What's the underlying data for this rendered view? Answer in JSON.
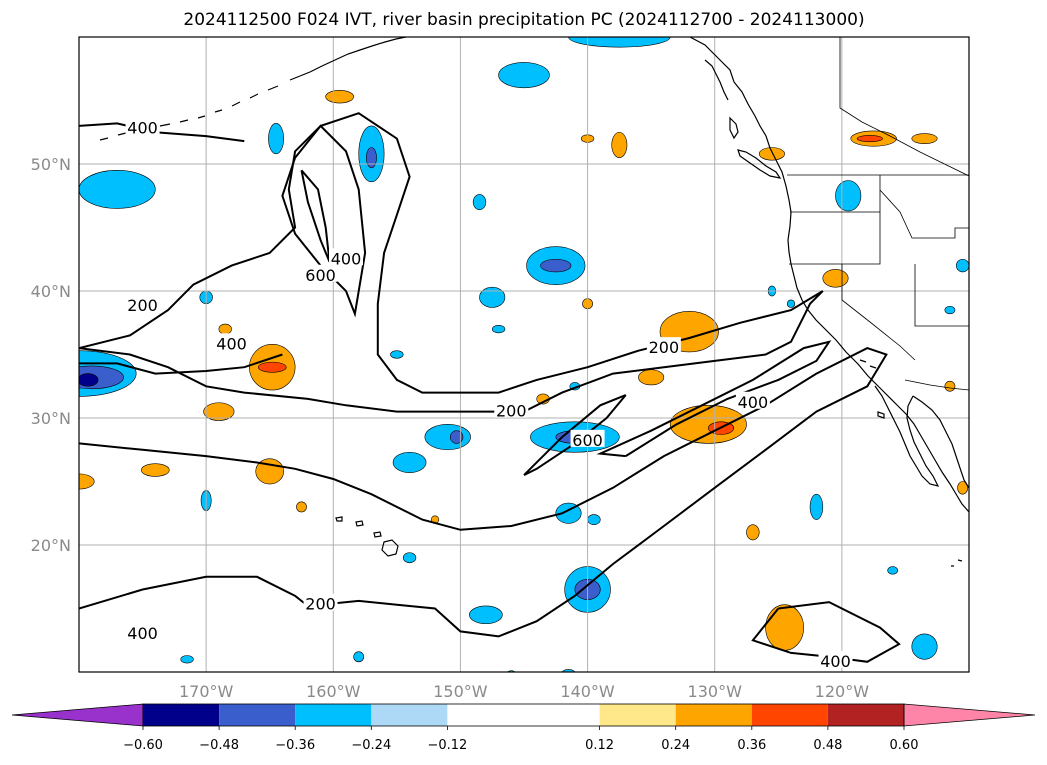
{
  "title": "2024112500 F024 IVT, river basin precipitation PC (2024112700 - 2024113000)",
  "map": {
    "lon_range": [
      -180,
      -110
    ],
    "lat_range": [
      10,
      60
    ],
    "lat_ticks": [
      {
        "value": 50,
        "label": "50°N"
      },
      {
        "value": 40,
        "label": "40°N"
      },
      {
        "value": 30,
        "label": "30°N"
      },
      {
        "value": 20,
        "label": "20°N"
      }
    ],
    "lon_ticks": [
      {
        "value": -170,
        "label": "170°W"
      },
      {
        "value": -160,
        "label": "160°W"
      },
      {
        "value": -150,
        "label": "150°W"
      },
      {
        "value": -140,
        "label": "140°W"
      },
      {
        "value": -130,
        "label": "130°W"
      },
      {
        "value": -120,
        "label": "120°W"
      }
    ],
    "grid": true
  },
  "colorbar": {
    "extend": "both",
    "colors": [
      "#9932cc",
      "#00008b",
      "#3a5fcd",
      "#00bfff",
      "#add8f6",
      "#ffffff",
      "#ffe88a",
      "#ffa500",
      "#ff4500",
      "#b22222",
      "#ff85a8"
    ],
    "ticks": [
      -0.6,
      -0.48,
      -0.36,
      -0.24,
      -0.12,
      0.12,
      0.24,
      0.36,
      0.48,
      0.6
    ],
    "tick_labels": [
      "−0.60",
      "−0.48",
      "−0.36",
      "−0.24",
      "−0.12",
      "0.12",
      "0.24",
      "0.36",
      "0.48",
      "0.60"
    ]
  },
  "ivt_contours": [
    {
      "level": 200,
      "label": "200",
      "points": [
        [
          -180,
          28
        ],
        [
          -175,
          27.5
        ],
        [
          -170,
          27
        ],
        [
          -166,
          26.5
        ],
        [
          -163,
          26
        ],
        [
          -160,
          25.2
        ],
        [
          -157,
          24
        ],
        [
          -153,
          22
        ],
        [
          -150,
          21.2
        ],
        [
          -146,
          21.5
        ],
        [
          -142,
          22.5
        ],
        [
          -138,
          24.5
        ],
        [
          -134,
          27
        ],
        [
          -130,
          29
        ],
        [
          -126,
          31
        ],
        [
          -122,
          33.5
        ],
        [
          -118,
          35.5
        ],
        [
          -116.5,
          35
        ],
        [
          -118,
          32.5
        ],
        [
          -122,
          30.5
        ],
        [
          -126,
          27.5
        ],
        [
          -130,
          24.5
        ],
        [
          -134,
          21.5
        ],
        [
          -138,
          18.5
        ],
        [
          -141,
          16
        ],
        [
          -144,
          14
        ],
        [
          -147,
          12.8
        ],
        [
          -150,
          13.2
        ],
        [
          -152,
          15
        ],
        [
          -155,
          15.3
        ],
        [
          -158,
          15.6
        ],
        [
          -162,
          15.2
        ],
        [
          -163,
          16
        ],
        [
          -166,
          17.5
        ],
        [
          -170,
          17.5
        ],
        [
          -175,
          16.5
        ],
        [
          -180,
          15
        ]
      ]
    },
    {
      "level": 200,
      "label": "200",
      "points": [
        [
          -180,
          35.5
        ],
        [
          -176,
          36.5
        ],
        [
          -173,
          38.5
        ],
        [
          -171,
          40.5
        ],
        [
          -168,
          42
        ],
        [
          -165,
          43
        ],
        [
          -163,
          45
        ],
        [
          -163.5,
          48
        ],
        [
          -163,
          51
        ],
        [
          -161,
          53
        ],
        [
          -158,
          54
        ],
        [
          -155,
          52
        ],
        [
          -154,
          49
        ],
        [
          -155,
          46
        ],
        [
          -156,
          43
        ],
        [
          -156.5,
          39
        ],
        [
          -156.5,
          35
        ],
        [
          -155,
          33
        ],
        [
          -153,
          32
        ],
        [
          -150,
          32
        ],
        [
          -147,
          32
        ],
        [
          -144,
          33
        ],
        [
          -140,
          34
        ],
        [
          -136,
          35.3
        ],
        [
          -132,
          36.3
        ],
        [
          -128,
          37.5
        ],
        [
          -124,
          38.5
        ],
        [
          -121.5,
          40
        ],
        [
          -122.5,
          39
        ],
        [
          -124,
          36
        ],
        [
          -126,
          35
        ],
        [
          -130,
          34.5
        ],
        [
          -134,
          34
        ],
        [
          -138,
          33.5
        ],
        [
          -142,
          32
        ],
        [
          -145,
          30.5
        ],
        [
          -150,
          30.5
        ],
        [
          -155,
          30.5
        ],
        [
          -159,
          31
        ],
        [
          -162,
          31.5
        ],
        [
          -167,
          32
        ],
        [
          -170,
          32.5
        ],
        [
          -173,
          34
        ],
        [
          -176,
          35
        ],
        [
          -180,
          35.5
        ]
      ]
    },
    {
      "level": 400,
      "label": "400",
      "points": [
        [
          -164,
          35
        ],
        [
          -167,
          34
        ],
        [
          -170,
          33.7
        ],
        [
          -174,
          33.5
        ],
        [
          -177,
          34.3
        ],
        [
          -180,
          34.3
        ]
      ]
    },
    {
      "level": 400,
      "label": "400",
      "points": [
        [
          -163,
          50.5
        ],
        [
          -164,
          47.5
        ],
        [
          -163,
          44.5
        ],
        [
          -161,
          42
        ],
        [
          -159,
          40
        ],
        [
          -158.3,
          38.2
        ],
        [
          -157.5,
          43
        ],
        [
          -158,
          48
        ],
        [
          -159,
          51
        ],
        [
          -161,
          53
        ],
        [
          -163,
          50.5
        ]
      ]
    },
    {
      "level": 400,
      "label": "400",
      "points": [
        [
          -180,
          53
        ],
        [
          -177,
          53.2
        ],
        [
          -174,
          52.5
        ],
        [
          -170,
          52.2
        ],
        [
          -167,
          51.8
        ]
      ]
    },
    {
      "level": 400,
      "label": "400",
      "points": [
        [
          -137,
          27
        ],
        [
          -133,
          29.5
        ],
        [
          -129,
          31.5
        ],
        [
          -125,
          33
        ],
        [
          -122,
          34.5
        ],
        [
          -121,
          36
        ],
        [
          -123,
          35.5
        ],
        [
          -127,
          33
        ],
        [
          -131,
          31
        ],
        [
          -135,
          29
        ],
        [
          -139,
          27.2
        ],
        [
          -137,
          27
        ]
      ]
    },
    {
      "level": 400,
      "label": "400",
      "points": [
        [
          -125,
          15
        ],
        [
          -121,
          15.5
        ],
        [
          -117,
          13.5
        ],
        [
          -115.5,
          12.2
        ],
        [
          -118,
          10.8
        ],
        [
          -121,
          11.2
        ],
        [
          -124,
          11.5
        ],
        [
          -127,
          12.5
        ],
        [
          -125,
          15
        ]
      ]
    },
    {
      "level": 600,
      "label": "600",
      "points": [
        [
          -162.5,
          49.5
        ],
        [
          -162,
          47
        ],
        [
          -161,
          44
        ],
        [
          -160.3,
          42.3
        ],
        [
          -160.6,
          45
        ],
        [
          -161.2,
          48
        ],
        [
          -162.5,
          49.5
        ]
      ]
    },
    {
      "level": 600,
      "label": "600",
      "points": [
        [
          -145,
          25.5
        ],
        [
          -142,
          28.5
        ],
        [
          -139,
          31
        ],
        [
          -137,
          31.8
        ],
        [
          -138.5,
          30
        ],
        [
          -141,
          28
        ],
        [
          -144,
          26
        ],
        [
          -145,
          25.5
        ]
      ]
    }
  ],
  "contour_labels": [
    {
      "text": "400",
      "lon": -175,
      "lat": 52.8
    },
    {
      "text": "400",
      "lon": -159,
      "lat": 42.5
    },
    {
      "text": "600",
      "lon": -161,
      "lat": 41.2
    },
    {
      "text": "200",
      "lon": -175,
      "lat": 38.8
    },
    {
      "text": "400",
      "lon": -168,
      "lat": 35.8
    },
    {
      "text": "200",
      "lon": -146,
      "lat": 30.5
    },
    {
      "text": "200",
      "lon": -134,
      "lat": 35.5
    },
    {
      "text": "600",
      "lon": -140,
      "lat": 28.2
    },
    {
      "text": "400",
      "lon": -127,
      "lat": 31.2
    },
    {
      "text": "200",
      "lon": -161,
      "lat": 15.3
    },
    {
      "text": "400",
      "lon": -175,
      "lat": 13
    },
    {
      "text": "400",
      "lon": -120.5,
      "lat": 10.8
    }
  ],
  "pc_patches": [
    {
      "lon": -180,
      "lat": 33.5,
      "rx": 4.5,
      "ry": 1.8,
      "color": "#00bfff"
    },
    {
      "lon": -179,
      "lat": 33.2,
      "rx": 2.5,
      "ry": 0.9,
      "color": "#3a5fcd"
    },
    {
      "lon": -179.3,
      "lat": 33.0,
      "rx": 0.8,
      "ry": 0.5,
      "color": "#00008b"
    },
    {
      "lon": -177,
      "lat": 48,
      "rx": 3,
      "ry": 1.5,
      "color": "#00bfff"
    },
    {
      "lon": -170,
      "lat": 39.5,
      "rx": 0.5,
      "ry": 0.5,
      "color": "#00bfff"
    },
    {
      "lon": -164.8,
      "lat": 34,
      "rx": 1.8,
      "ry": 1.8,
      "color": "#ffa500"
    },
    {
      "lon": -164.8,
      "lat": 34,
      "rx": 1.1,
      "ry": 0.4,
      "color": "#ff4500"
    },
    {
      "lon": -168.5,
      "lat": 37,
      "rx": 0.5,
      "ry": 0.4,
      "color": "#ffa500"
    },
    {
      "lon": -169,
      "lat": 30.5,
      "rx": 1.2,
      "ry": 0.7,
      "color": "#ffa500"
    },
    {
      "lon": -164.5,
      "lat": 52,
      "rx": 0.6,
      "ry": 1.2,
      "color": "#00bfff"
    },
    {
      "lon": -159.5,
      "lat": 55.3,
      "rx": 1.1,
      "ry": 0.5,
      "color": "#ffa500"
    },
    {
      "lon": -157,
      "lat": 50.8,
      "rx": 1.0,
      "ry": 2.2,
      "color": "#00bfff"
    },
    {
      "lon": -157,
      "lat": 50.5,
      "rx": 0.4,
      "ry": 0.8,
      "color": "#3a5fcd"
    },
    {
      "lon": -165,
      "lat": 25.8,
      "rx": 1.1,
      "ry": 1.0,
      "color": "#ffa500"
    },
    {
      "lon": -174,
      "lat": 25.9,
      "rx": 1.1,
      "ry": 0.5,
      "color": "#ffa500"
    },
    {
      "lon": -180,
      "lat": 25,
      "rx": 1.2,
      "ry": 0.6,
      "color": "#ffa500"
    },
    {
      "lon": -162.5,
      "lat": 23,
      "rx": 0.4,
      "ry": 0.4,
      "color": "#ffa500"
    },
    {
      "lon": -170,
      "lat": 23.5,
      "rx": 0.4,
      "ry": 0.8,
      "color": "#00bfff"
    },
    {
      "lon": -155,
      "lat": 35,
      "rx": 0.5,
      "ry": 0.3,
      "color": "#00bfff"
    },
    {
      "lon": -151,
      "lat": 28.5,
      "rx": 1.8,
      "ry": 1.0,
      "color": "#00bfff"
    },
    {
      "lon": -150.3,
      "lat": 28.5,
      "rx": 0.5,
      "ry": 0.5,
      "color": "#3a5fcd"
    },
    {
      "lon": -154,
      "lat": 26.5,
      "rx": 1.3,
      "ry": 0.8,
      "color": "#00bfff"
    },
    {
      "lon": -142.5,
      "lat": 42,
      "rx": 2.3,
      "ry": 1.5,
      "color": "#00bfff"
    },
    {
      "lon": -142.5,
      "lat": 42,
      "rx": 1.2,
      "ry": 0.5,
      "color": "#3a5fcd"
    },
    {
      "lon": -147.5,
      "lat": 39.5,
      "rx": 1.0,
      "ry": 0.8,
      "color": "#00bfff"
    },
    {
      "lon": -148.5,
      "lat": 47,
      "rx": 0.5,
      "ry": 0.6,
      "color": "#00bfff"
    },
    {
      "lon": -147,
      "lat": 37,
      "rx": 0.5,
      "ry": 0.3,
      "color": "#00bfff"
    },
    {
      "lon": -140,
      "lat": 39,
      "rx": 0.4,
      "ry": 0.4,
      "color": "#ffa500"
    },
    {
      "lon": -140,
      "lat": 52,
      "rx": 0.5,
      "ry": 0.3,
      "color": "#ffa500"
    },
    {
      "lon": -137.5,
      "lat": 51.5,
      "rx": 0.6,
      "ry": 1.0,
      "color": "#ffa500"
    },
    {
      "lon": -145,
      "lat": 57,
      "rx": 2.0,
      "ry": 1.0,
      "color": "#00bfff"
    },
    {
      "lon": -137.5,
      "lat": 60,
      "rx": 4.0,
      "ry": 0.8,
      "color": "#00bfff"
    },
    {
      "lon": -141,
      "lat": 28.5,
      "rx": 3.5,
      "ry": 1.2,
      "color": "#00bfff"
    },
    {
      "lon": -141,
      "lat": 28.5,
      "rx": 1.5,
      "ry": 0.5,
      "color": "#3a5fcd"
    },
    {
      "lon": -143.5,
      "lat": 31.5,
      "rx": 0.5,
      "ry": 0.4,
      "color": "#ffa500"
    },
    {
      "lon": -141,
      "lat": 32.5,
      "rx": 0.4,
      "ry": 0.3,
      "color": "#00bfff"
    },
    {
      "lon": -132,
      "lat": 36.8,
      "rx": 2.3,
      "ry": 1.6,
      "color": "#ffa500"
    },
    {
      "lon": -135,
      "lat": 33.2,
      "rx": 1.0,
      "ry": 0.6,
      "color": "#ffa500"
    },
    {
      "lon": -130.5,
      "lat": 29.5,
      "rx": 3.0,
      "ry": 1.5,
      "color": "#ffa500"
    },
    {
      "lon": -129.5,
      "lat": 29.2,
      "rx": 1.0,
      "ry": 0.5,
      "color": "#ff4500"
    },
    {
      "lon": -141.5,
      "lat": 22.5,
      "rx": 1.0,
      "ry": 0.8,
      "color": "#00bfff"
    },
    {
      "lon": -139.5,
      "lat": 22,
      "rx": 0.5,
      "ry": 0.4,
      "color": "#00bfff"
    },
    {
      "lon": -140,
      "lat": 16.5,
      "rx": 1.8,
      "ry": 1.8,
      "color": "#00bfff"
    },
    {
      "lon": -140,
      "lat": 16.5,
      "rx": 1.0,
      "ry": 0.8,
      "color": "#3a5fcd"
    },
    {
      "lon": -148,
      "lat": 14.5,
      "rx": 1.3,
      "ry": 0.7,
      "color": "#00bfff"
    },
    {
      "lon": -158,
      "lat": 11.2,
      "rx": 0.4,
      "ry": 0.4,
      "color": "#00bfff"
    },
    {
      "lon": -127,
      "lat": 21,
      "rx": 0.5,
      "ry": 0.6,
      "color": "#ffa500"
    },
    {
      "lon": -122,
      "lat": 23,
      "rx": 0.5,
      "ry": 1.0,
      "color": "#00bfff"
    },
    {
      "lon": -124.5,
      "lat": 13.5,
      "rx": 1.5,
      "ry": 1.8,
      "color": "#ffa500"
    },
    {
      "lon": -113.5,
      "lat": 12,
      "rx": 1.0,
      "ry": 1.0,
      "color": "#00bfff"
    },
    {
      "lon": -116,
      "lat": 18,
      "rx": 0.4,
      "ry": 0.3,
      "color": "#00bfff"
    },
    {
      "lon": -119.5,
      "lat": 47.5,
      "rx": 1.0,
      "ry": 1.2,
      "color": "#00bfff"
    },
    {
      "lon": -120.5,
      "lat": 41,
      "rx": 1.0,
      "ry": 0.7,
      "color": "#ffa500"
    },
    {
      "lon": -117.5,
      "lat": 52,
      "rx": 1.8,
      "ry": 0.6,
      "color": "#ffa500"
    },
    {
      "lon": -117.8,
      "lat": 52,
      "rx": 1.0,
      "ry": 0.25,
      "color": "#ff4500"
    },
    {
      "lon": -113.5,
      "lat": 52,
      "rx": 1.0,
      "ry": 0.4,
      "color": "#ffa500"
    },
    {
      "lon": -125.5,
      "lat": 50.8,
      "rx": 1.0,
      "ry": 0.5,
      "color": "#ffa500"
    },
    {
      "lon": -111.5,
      "lat": 32.5,
      "rx": 0.4,
      "ry": 0.4,
      "color": "#ffa500"
    },
    {
      "lon": -111.5,
      "lat": 38.5,
      "rx": 0.4,
      "ry": 0.3,
      "color": "#00bfff"
    },
    {
      "lon": -110.5,
      "lat": 42,
      "rx": 0.5,
      "ry": 0.5,
      "color": "#00bfff"
    },
    {
      "lon": -110.5,
      "lat": 24.5,
      "rx": 0.4,
      "ry": 0.5,
      "color": "#ffa500"
    },
    {
      "lon": -171.5,
      "lat": 11,
      "rx": 0.5,
      "ry": 0.3,
      "color": "#00bfff"
    },
    {
      "lon": -154,
      "lat": 19,
      "rx": 0.5,
      "ry": 0.4,
      "color": "#00bfff"
    },
    {
      "lon": -152,
      "lat": 22,
      "rx": 0.3,
      "ry": 0.3,
      "color": "#ffa500"
    },
    {
      "lon": -141.5,
      "lat": 9.8,
      "rx": 0.6,
      "ry": 0.4,
      "color": "#00bfff"
    },
    {
      "lon": -146,
      "lat": 9.8,
      "rx": 0.4,
      "ry": 0.3,
      "color": "#00bfff"
    },
    {
      "lon": -125.5,
      "lat": 40,
      "rx": 0.3,
      "ry": 0.4,
      "color": "#00bfff"
    },
    {
      "lon": -124,
      "lat": 39,
      "rx": 0.3,
      "ry": 0.3,
      "color": "#00bfff"
    }
  ]
}
